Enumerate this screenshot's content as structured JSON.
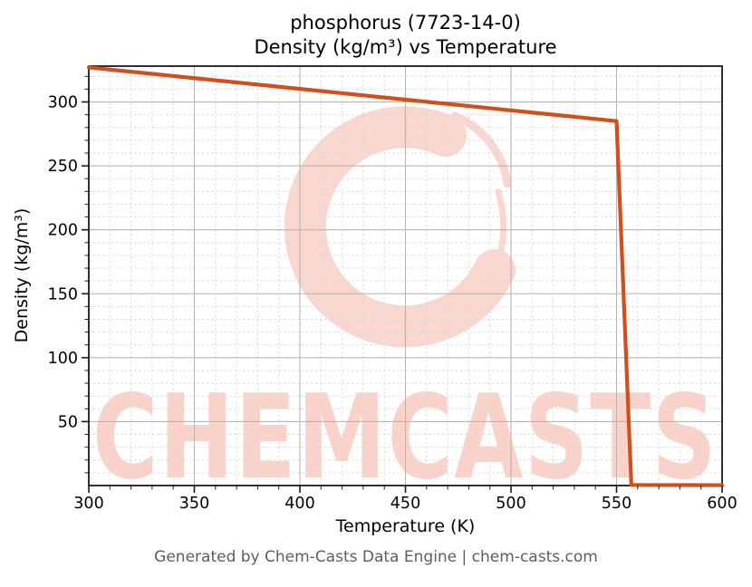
{
  "title": {
    "line1": "phosphorus (7723-14-0)",
    "line2": "Density (kg/m³) vs Temperature"
  },
  "footer": "Generated by Chem-Casts Data Engine | chem-casts.com",
  "watermark": {
    "text": "CHEMCASTS",
    "logo": "c-swirl-brush-mark",
    "text_color": "#f9d3ca",
    "logo_color": "#f9d6ce"
  },
  "chart_data": {
    "type": "line",
    "title": "phosphorus (7723-14-0)",
    "subtitle": "Density (kg/m³) vs Temperature",
    "xlabel": "Temperature (K)",
    "ylabel": "Density (kg/m³)",
    "xlim": [
      300,
      600
    ],
    "ylim": [
      0,
      328
    ],
    "x_ticks": [
      300,
      350,
      400,
      450,
      500,
      550,
      600
    ],
    "y_ticks": [
      50,
      100,
      150,
      200,
      250,
      300
    ],
    "x_minor_step": 10,
    "y_minor_step": 10,
    "grid": {
      "major": true,
      "minor": true,
      "minor_style": "dashed"
    },
    "legend_position": "none",
    "axis_color": "#1a1a1a",
    "series": [
      {
        "name": "phosphorus density",
        "color": "#cf4f1d",
        "line_width": 4.2,
        "x": [
          300,
          350,
          400,
          450,
          500,
          550,
          557,
          600
        ],
        "y": [
          327,
          318.6,
          310.2,
          301.8,
          293.4,
          285,
          0.5,
          0.3
        ]
      }
    ]
  }
}
